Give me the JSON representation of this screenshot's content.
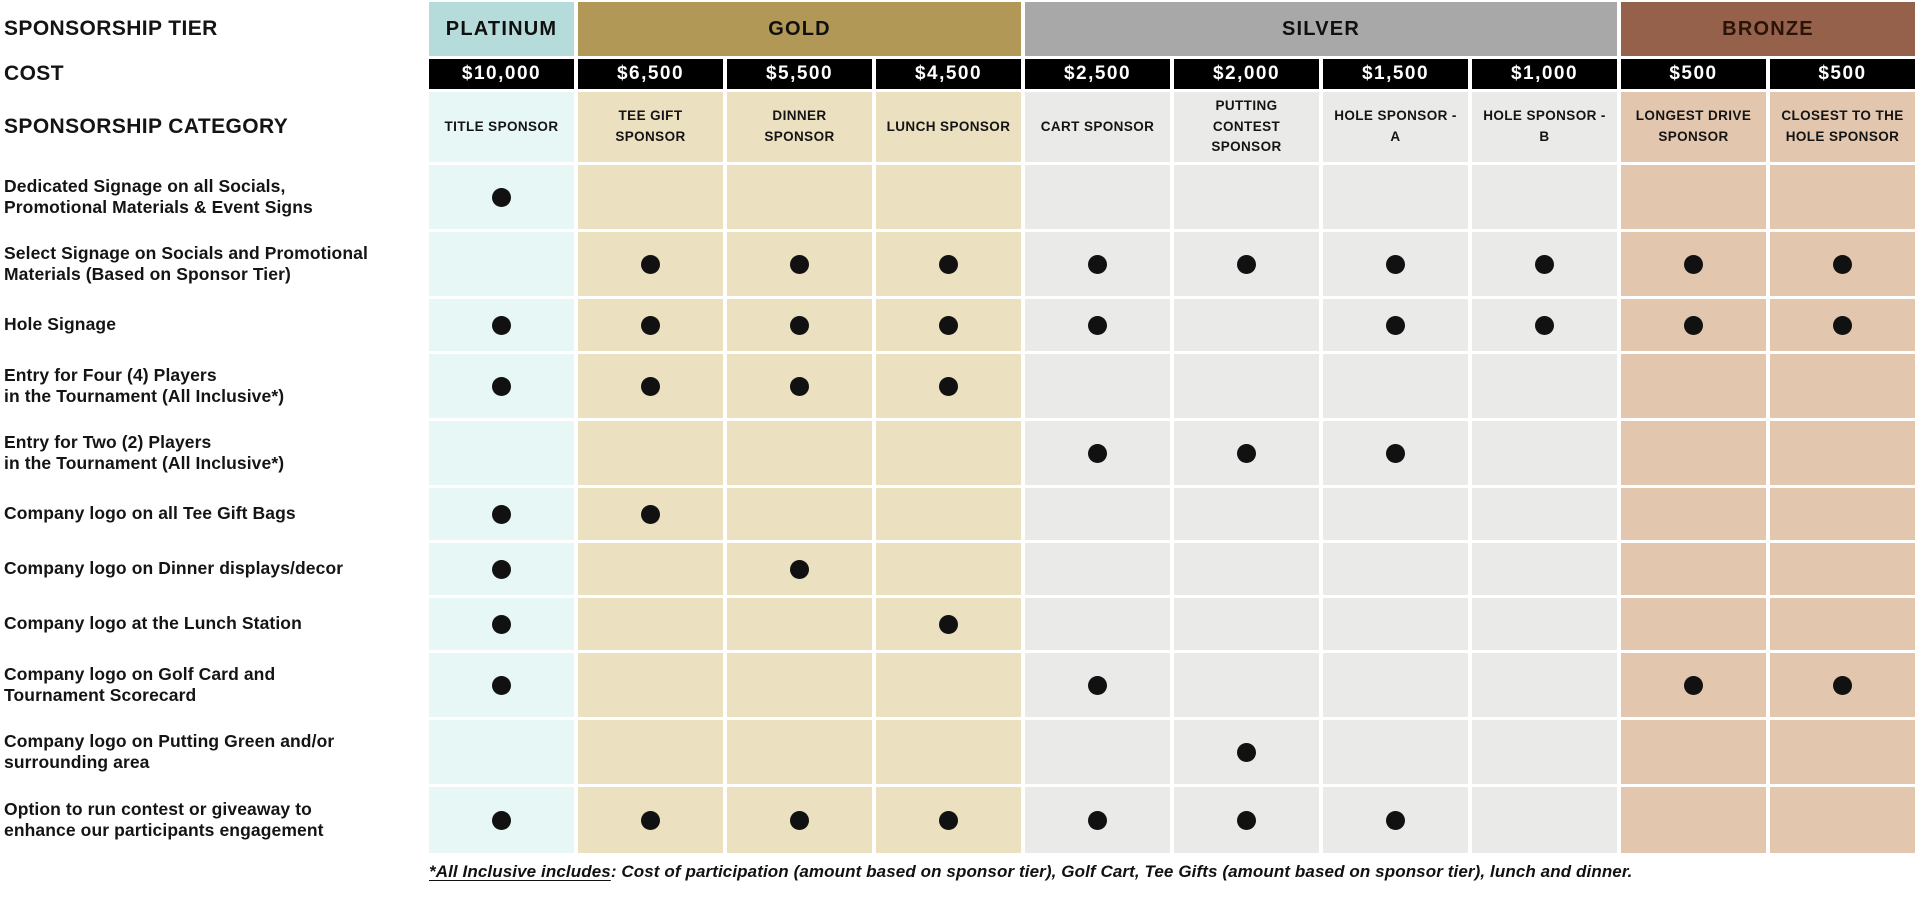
{
  "left_headers": {
    "tier": "SPONSORSHIP TIER",
    "cost": "COST",
    "category": "SPONSORSHIP CATEGORY"
  },
  "tiers": [
    {
      "name": "PLATINUM",
      "span": 1
    },
    {
      "name": "GOLD",
      "span": 3
    },
    {
      "name": "SILVER",
      "span": 4
    },
    {
      "name": "BRONZE",
      "span": 2
    }
  ],
  "columns": [
    {
      "tier": "platinum",
      "cost": "$10,000",
      "category": "TITLE SPONSOR"
    },
    {
      "tier": "gold",
      "cost": "$6,500",
      "category": "TEE GIFT SPONSOR"
    },
    {
      "tier": "gold",
      "cost": "$5,500",
      "category": "DINNER SPONSOR"
    },
    {
      "tier": "gold",
      "cost": "$4,500",
      "category": "LUNCH SPONSOR"
    },
    {
      "tier": "silver",
      "cost": "$2,500",
      "category": "CART SPONSOR"
    },
    {
      "tier": "silver",
      "cost": "$2,000",
      "category": "PUTTING CONTEST SPONSOR"
    },
    {
      "tier": "silver",
      "cost": "$1,500",
      "category": "HOLE SPONSOR - A"
    },
    {
      "tier": "silver",
      "cost": "$1,000",
      "category": "HOLE SPONSOR - B"
    },
    {
      "tier": "bronze",
      "cost": "$500",
      "category": "LONGEST DRIVE SPONSOR"
    },
    {
      "tier": "bronze",
      "cost": "$500",
      "category": "CLOSEST TO THE HOLE SPONSOR"
    }
  ],
  "benefits": [
    {
      "label": "Dedicated Signage on all Socials,\nPromotional Materials & Event Signs",
      "dots": [
        1,
        0,
        0,
        0,
        0,
        0,
        0,
        0,
        0,
        0
      ]
    },
    {
      "label": "Select Signage on Socials and Promotional\nMaterials (Based on Sponsor Tier)",
      "dots": [
        0,
        1,
        1,
        1,
        1,
        1,
        1,
        1,
        1,
        1
      ]
    },
    {
      "label": "Hole Signage",
      "dots": [
        1,
        1,
        1,
        1,
        1,
        0,
        1,
        1,
        1,
        1
      ]
    },
    {
      "label": "Entry for Four (4) Players\nin the Tournament (All Inclusive*)",
      "dots": [
        1,
        1,
        1,
        1,
        0,
        0,
        0,
        0,
        0,
        0
      ]
    },
    {
      "label": "Entry for Two (2) Players\nin the Tournament (All Inclusive*)",
      "dots": [
        0,
        0,
        0,
        0,
        1,
        1,
        1,
        0,
        0,
        0
      ]
    },
    {
      "label": "Company logo on all Tee Gift Bags",
      "dots": [
        1,
        1,
        0,
        0,
        0,
        0,
        0,
        0,
        0,
        0
      ]
    },
    {
      "label": "Company logo on Dinner displays/decor",
      "dots": [
        1,
        0,
        1,
        0,
        0,
        0,
        0,
        0,
        0,
        0
      ]
    },
    {
      "label": "Company logo at the Lunch Station",
      "dots": [
        1,
        0,
        0,
        1,
        0,
        0,
        0,
        0,
        0,
        0
      ]
    },
    {
      "label": "Company logo on Golf Card and\nTournament Scorecard",
      "dots": [
        1,
        0,
        0,
        0,
        1,
        0,
        0,
        0,
        1,
        1
      ]
    },
    {
      "label": "Company logo on Putting Green and/or\nsurrounding area",
      "dots": [
        0,
        0,
        0,
        0,
        0,
        1,
        0,
        0,
        0,
        0
      ]
    },
    {
      "label": "Option to run contest or giveaway to\nenhance our participants engagement",
      "dots": [
        1,
        1,
        1,
        1,
        1,
        1,
        1,
        0,
        0,
        0
      ]
    }
  ],
  "footnote": {
    "lead": "*All Inclusive includes",
    "rest": ": Cost of participation (amount based on sponsor tier), Golf Cart, Tee Gifts (amount based on sponsor tier), lunch and dinner."
  },
  "colors": {
    "platinum_header": "#b5dbda",
    "gold_header": "#b29857",
    "silver_header": "#a8a8a8",
    "bronze_header": "#96614b",
    "bronze_header_text": "#2a1309",
    "platinum_cell": "#e7f7f6",
    "gold_cell": "#ebe0bf",
    "silver_cell": "#eaeae8",
    "bronze_cell": "#e3c6ae",
    "cost_bg": "#000000",
    "cost_text": "#ffffff",
    "dot": "#111111",
    "text": "#141414"
  }
}
